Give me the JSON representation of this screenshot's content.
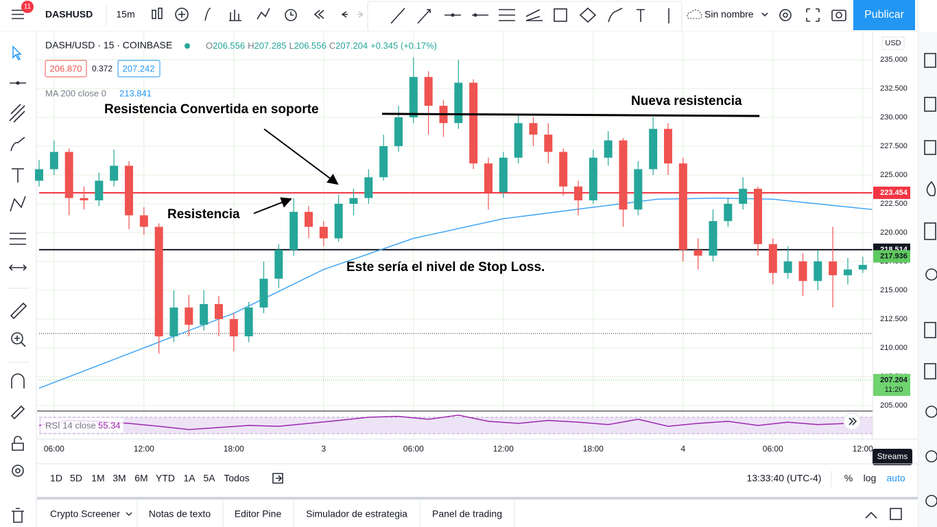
{
  "toolbar": {
    "badge": "11",
    "symbol": "DASHUSD",
    "interval": "15m",
    "layout_name": "Sin nombre",
    "publish": "Publicar"
  },
  "quote": {
    "bid": "206.870",
    "spread": 0.372,
    "ask": "207.242"
  },
  "price_axis_unit": "USD",
  "tooltip": "Streams",
  "range_buttons": [
    "1D",
    "5D",
    "1M",
    "3M",
    "6M",
    "YTD",
    "1A",
    "5A",
    "Todos"
  ],
  "clock": "13:33:40 (UTC-4)",
  "scale_buttons": [
    "%",
    "log",
    "auto"
  ],
  "footer_tabs": [
    "Crypto Screener",
    "Notas de texto",
    "Editor Pine",
    "Simulador de estrategia",
    "Panel de trading"
  ],
  "chart_data": [
    {
      "type": "candlestick",
      "title": "DASH/USD · 15 · COINBASE",
      "ohlc": [
        {
          "label": "O",
          "value": 206.556
        },
        {
          "label": "H",
          "value": 207.285
        },
        {
          "label": "L",
          "value": 206.556
        },
        {
          "label": "C",
          "value": 207.204
        }
      ],
      "change": "+0.345 (+0.17%)",
      "up_color": "#26a69a",
      "down_color": "#ef5350",
      "grid": true,
      "xlim": [
        -1,
        54.65
      ],
      "ylim": [
        204.58,
        237.44
      ],
      "xticks": [
        {
          "value": 0,
          "label": "06:00"
        },
        {
          "value": 6,
          "label": "12:00"
        },
        {
          "value": 12,
          "label": "18:00"
        },
        {
          "value": 18,
          "label": "3"
        },
        {
          "value": 24,
          "label": "06:00"
        },
        {
          "value": 30,
          "label": "12:00"
        },
        {
          "value": 36,
          "label": "18:00"
        },
        {
          "value": 42,
          "label": "4"
        },
        {
          "value": 48,
          "label": "06:00"
        },
        {
          "value": 54,
          "label": "12:00"
        }
      ],
      "yticks": [
        {
          "value": 205,
          "label": "205.000"
        },
        {
          "value": 207.5,
          "label": "207.500"
        },
        {
          "value": 210,
          "label": "210.000"
        },
        {
          "value": 212.5,
          "label": "212.500"
        },
        {
          "value": 215,
          "label": "215.000"
        },
        {
          "value": 217.5,
          "label": "217.500"
        },
        {
          "value": 220,
          "label": "220.000"
        },
        {
          "value": 222.5,
          "label": "222.500"
        },
        {
          "value": 225,
          "label": "225.000"
        },
        {
          "value": 227.5,
          "label": "227.500"
        },
        {
          "value": 230,
          "label": "230.000"
        },
        {
          "value": 232.5,
          "label": "232.500"
        },
        {
          "value": 235,
          "label": "235.000"
        }
      ],
      "x": [
        -1,
        0,
        1,
        2,
        3,
        4,
        5,
        6,
        7,
        8,
        9,
        10,
        11,
        12,
        13,
        14,
        15,
        16,
        17,
        18,
        19,
        20,
        21,
        22,
        23,
        24,
        25,
        26,
        27,
        28,
        29,
        30,
        31,
        32,
        33,
        34,
        35,
        36,
        37,
        38,
        39,
        40,
        41,
        42,
        43,
        44,
        45,
        46,
        47,
        48,
        49,
        50,
        51,
        52,
        53,
        54
      ],
      "open": [
        224.5,
        225.5,
        227.0,
        223.0,
        222.8,
        224.5,
        225.8,
        221.5,
        220.5,
        211.0,
        213.5,
        212.0,
        213.8,
        212.5,
        211.0,
        213.5,
        216.0,
        218.5,
        221.8,
        220.5,
        219.5,
        222.5,
        223.0,
        224.8,
        227.5,
        230.0,
        233.5,
        231.0,
        229.5,
        233.0,
        226.0,
        223.5,
        226.5,
        229.5,
        228.5,
        227.0,
        224.0,
        222.8,
        226.5,
        228.0,
        222.0,
        225.5,
        229.0,
        226.0,
        218.5,
        218.0,
        221.0,
        222.5,
        223.8,
        219.0,
        216.5,
        217.5,
        215.8,
        217.5,
        216.3,
        216.8
      ],
      "high": [
        226.3,
        228.0,
        227.3,
        224.0,
        225.2,
        227.2,
        226.2,
        222.2,
        220.8,
        215.0,
        214.6,
        215.0,
        214.5,
        213.0,
        214.0,
        217.5,
        219.0,
        223.0,
        222.3,
        221.0,
        223.3,
        223.8,
        225.5,
        228.5,
        231.0,
        235.2,
        234.0,
        231.5,
        235.0,
        233.3,
        226.5,
        227.0,
        230.2,
        230.0,
        229.5,
        227.3,
        224.5,
        227.2,
        228.8,
        228.2,
        226.2,
        230.0,
        229.5,
        226.5,
        219.5,
        222.0,
        223.0,
        224.8,
        224.0,
        219.5,
        218.8,
        218.2,
        218.5,
        220.5,
        217.8,
        217.9
      ],
      "low": [
        224.0,
        225.0,
        221.5,
        222.0,
        222.3,
        224.0,
        220.3,
        219.8,
        209.5,
        210.5,
        211.0,
        211.5,
        211.0,
        209.7,
        210.5,
        213.0,
        215.2,
        218.0,
        219.5,
        218.8,
        219.2,
        221.5,
        222.5,
        224.5,
        227.0,
        229.5,
        228.5,
        228.3,
        229.0,
        225.5,
        222.0,
        223.0,
        226.0,
        227.5,
        226.0,
        223.2,
        221.5,
        222.5,
        225.8,
        220.5,
        221.5,
        225.0,
        225.0,
        217.5,
        216.8,
        217.5,
        220.5,
        222.0,
        218.0,
        215.5,
        216.0,
        214.5,
        215.0,
        213.5,
        215.5,
        216.5
      ],
      "close": [
        225.5,
        227.0,
        223.0,
        222.8,
        224.5,
        225.8,
        221.5,
        220.5,
        211.0,
        213.5,
        212.0,
        213.8,
        212.5,
        211.0,
        213.5,
        216.0,
        218.5,
        221.8,
        220.5,
        219.5,
        222.5,
        223.0,
        224.8,
        227.5,
        230.0,
        233.5,
        231.0,
        229.5,
        233.0,
        226.0,
        223.5,
        226.5,
        229.5,
        228.5,
        227.0,
        224.0,
        222.8,
        226.5,
        228.0,
        222.0,
        225.5,
        229.0,
        226.0,
        218.5,
        218.0,
        221.0,
        222.5,
        223.8,
        219.0,
        216.5,
        217.5,
        215.8,
        217.5,
        216.3,
        216.8,
        217.2
      ],
      "ma": {
        "name": "MA 200 close 0",
        "value": 213.841,
        "color": "#42a5f5",
        "x": [
          -1,
          6,
          12,
          18,
          24,
          30,
          36,
          40.3,
          44.4,
          48,
          54.65
        ],
        "values": [
          206.5,
          210.0,
          213.0,
          216.8,
          219.5,
          221.2,
          222.2,
          222.9,
          223.0,
          222.9,
          222.0
        ]
      },
      "levels": [
        {
          "value": 223.454,
          "color": "#f23645",
          "style": "solid",
          "label_color": "#ffffff"
        },
        {
          "value": 218.514,
          "color": "#131722",
          "style": "solid",
          "label_color": "#ffffff"
        },
        {
          "value": 217.936,
          "color": "#5ec95e",
          "style": "none",
          "label_color": "#131722"
        },
        {
          "value": 207.204,
          "color": "#6fd36f",
          "style": "dotted",
          "label_color": "#131722",
          "sublabel": "11:20"
        },
        {
          "value": 211.25,
          "color": "#131722",
          "style": "dotted"
        }
      ],
      "trendlines": [
        {
          "x": [
            21.9,
            47.1
          ],
          "values": [
            230.3,
            230.12
          ],
          "color": "#000000"
        }
      ],
      "annotations": [
        "Resistencia Convertida en soporte",
        "Nueva resistencia",
        "Resistencia",
        "Este sería el nivel de Stop Loss."
      ]
    },
    {
      "type": "line",
      "name": "RSI 14 close",
      "value": 55.34,
      "color": "#9c27b0",
      "band": [
        30,
        70
      ],
      "ylim": [
        23.3,
        83.3
      ],
      "x": [
        -1,
        1,
        3,
        5,
        7,
        9,
        11,
        13,
        15,
        17,
        19,
        21,
        23,
        25,
        27,
        29,
        31,
        33,
        35,
        37,
        39,
        41,
        43,
        45,
        47,
        49,
        51,
        53
      ],
      "values": [
        50,
        62,
        60,
        55,
        48,
        40,
        45,
        50,
        48,
        55,
        62,
        70,
        72,
        65,
        75,
        60,
        55,
        62,
        58,
        52,
        65,
        48,
        55,
        60,
        50,
        58,
        52,
        55
      ]
    }
  ]
}
